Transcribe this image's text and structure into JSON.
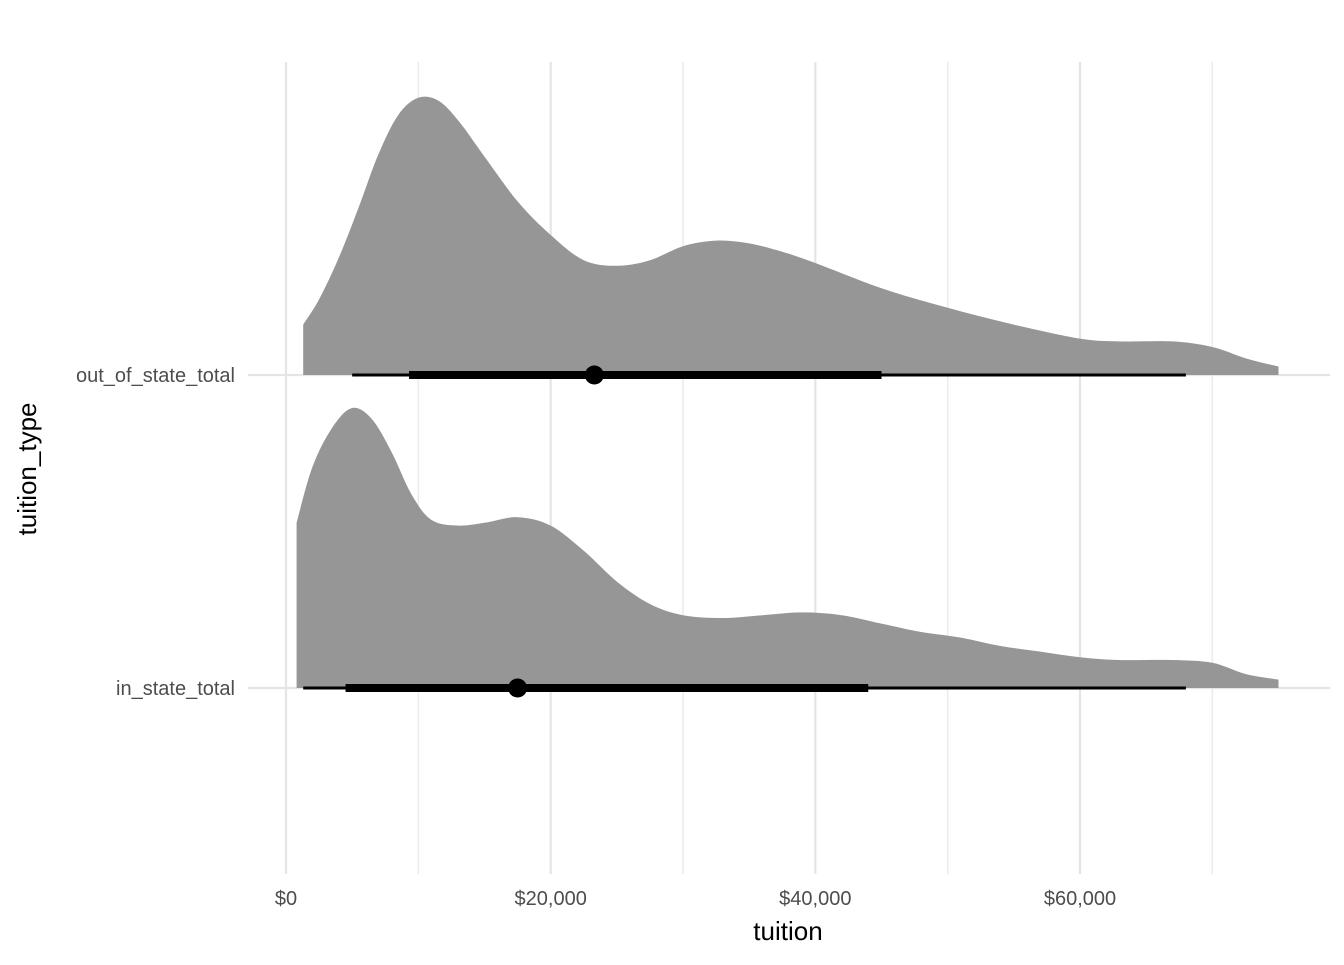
{
  "chart_data": {
    "type": "halfeye",
    "title": "",
    "xlabel": "tuition",
    "ylabel": "tuition_type",
    "xlim": [
      0,
      75000
    ],
    "x_ticks": [
      0,
      20000,
      40000,
      60000
    ],
    "x_tick_labels": [
      "$0",
      "$20,000",
      "$40,000",
      "$60,000"
    ],
    "x_minor_ticks": [
      10000,
      30000,
      50000,
      70000
    ],
    "grid": true,
    "series": [
      {
        "name": "in_state_total",
        "density": [
          [
            800,
            0.59
          ],
          [
            2000,
            0.79
          ],
          [
            3500,
            0.93
          ],
          [
            5000,
            1.0
          ],
          [
            6500,
            0.96
          ],
          [
            8000,
            0.84
          ],
          [
            9500,
            0.69
          ],
          [
            11000,
            0.6
          ],
          [
            13000,
            0.58
          ],
          [
            15000,
            0.59
          ],
          [
            17500,
            0.61
          ],
          [
            20000,
            0.58
          ],
          [
            22500,
            0.49
          ],
          [
            25000,
            0.38
          ],
          [
            27500,
            0.3
          ],
          [
            30000,
            0.26
          ],
          [
            33000,
            0.25
          ],
          [
            36000,
            0.26
          ],
          [
            39000,
            0.27
          ],
          [
            42000,
            0.26
          ],
          [
            45000,
            0.23
          ],
          [
            48000,
            0.2
          ],
          [
            51000,
            0.18
          ],
          [
            54000,
            0.15
          ],
          [
            57000,
            0.13
          ],
          [
            60000,
            0.11
          ],
          [
            63000,
            0.1
          ],
          [
            67000,
            0.1
          ],
          [
            70000,
            0.09
          ],
          [
            72500,
            0.05
          ],
          [
            75000,
            0.03
          ]
        ],
        "point": 17500,
        "interval_66": [
          4500,
          44000
        ],
        "interval_95": [
          1300,
          68000
        ]
      },
      {
        "name": "out_of_state_total",
        "density": [
          [
            1300,
            0.18
          ],
          [
            2500,
            0.27
          ],
          [
            4000,
            0.42
          ],
          [
            5500,
            0.6
          ],
          [
            7000,
            0.79
          ],
          [
            8500,
            0.93
          ],
          [
            10000,
            0.99
          ],
          [
            11500,
            0.98
          ],
          [
            13000,
            0.91
          ],
          [
            15000,
            0.78
          ],
          [
            17500,
            0.62
          ],
          [
            20000,
            0.5
          ],
          [
            22500,
            0.41
          ],
          [
            25000,
            0.39
          ],
          [
            27500,
            0.41
          ],
          [
            30000,
            0.46
          ],
          [
            32500,
            0.48
          ],
          [
            35000,
            0.47
          ],
          [
            37500,
            0.44
          ],
          [
            40000,
            0.4
          ],
          [
            45000,
            0.31
          ],
          [
            50000,
            0.24
          ],
          [
            55000,
            0.18
          ],
          [
            60000,
            0.13
          ],
          [
            63000,
            0.12
          ],
          [
            67000,
            0.12
          ],
          [
            70000,
            0.1
          ],
          [
            72500,
            0.06
          ],
          [
            75000,
            0.03
          ]
        ],
        "point": 23300,
        "interval_66": [
          9300,
          45000
        ],
        "interval_95": [
          5000,
          68000
        ]
      }
    ]
  }
}
